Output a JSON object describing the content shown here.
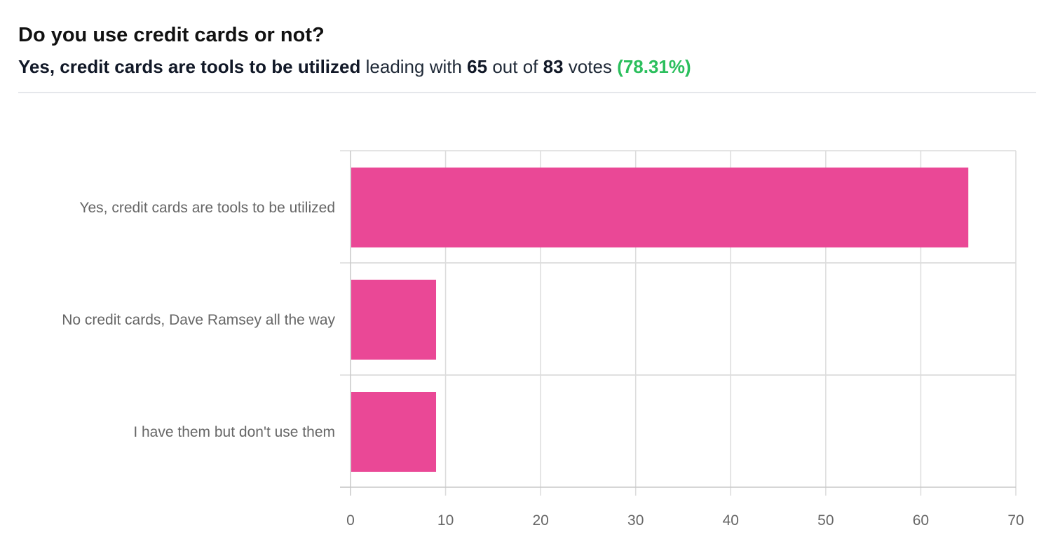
{
  "poll": {
    "question": "Do you use credit cards or not?",
    "leader": "Yes, credit cards are tools to be utilized",
    "leading_with_text": "leading with",
    "votes_leader": "65",
    "out_of_text": "out of",
    "votes_total": "83",
    "votes_text": "votes",
    "percentage": "(78.31%)"
  },
  "colors": {
    "bar": "#ea4896",
    "percentage": "#2bbf5d",
    "grid": "#dcdcdc",
    "axis": "#c8c8c8",
    "label": "#666666"
  },
  "chart_data": {
    "type": "bar",
    "orientation": "horizontal",
    "title": "",
    "xlabel": "",
    "ylabel": "",
    "categories": [
      "Yes, credit cards are tools to be utilized",
      "No credit cards, Dave Ramsey all the way",
      "I have them but don't use them"
    ],
    "values": [
      65,
      9,
      9
    ],
    "xlim": [
      0,
      70
    ],
    "xticks": [
      0,
      10,
      20,
      30,
      40,
      50,
      60,
      70
    ],
    "grid": true,
    "legend": "none"
  }
}
